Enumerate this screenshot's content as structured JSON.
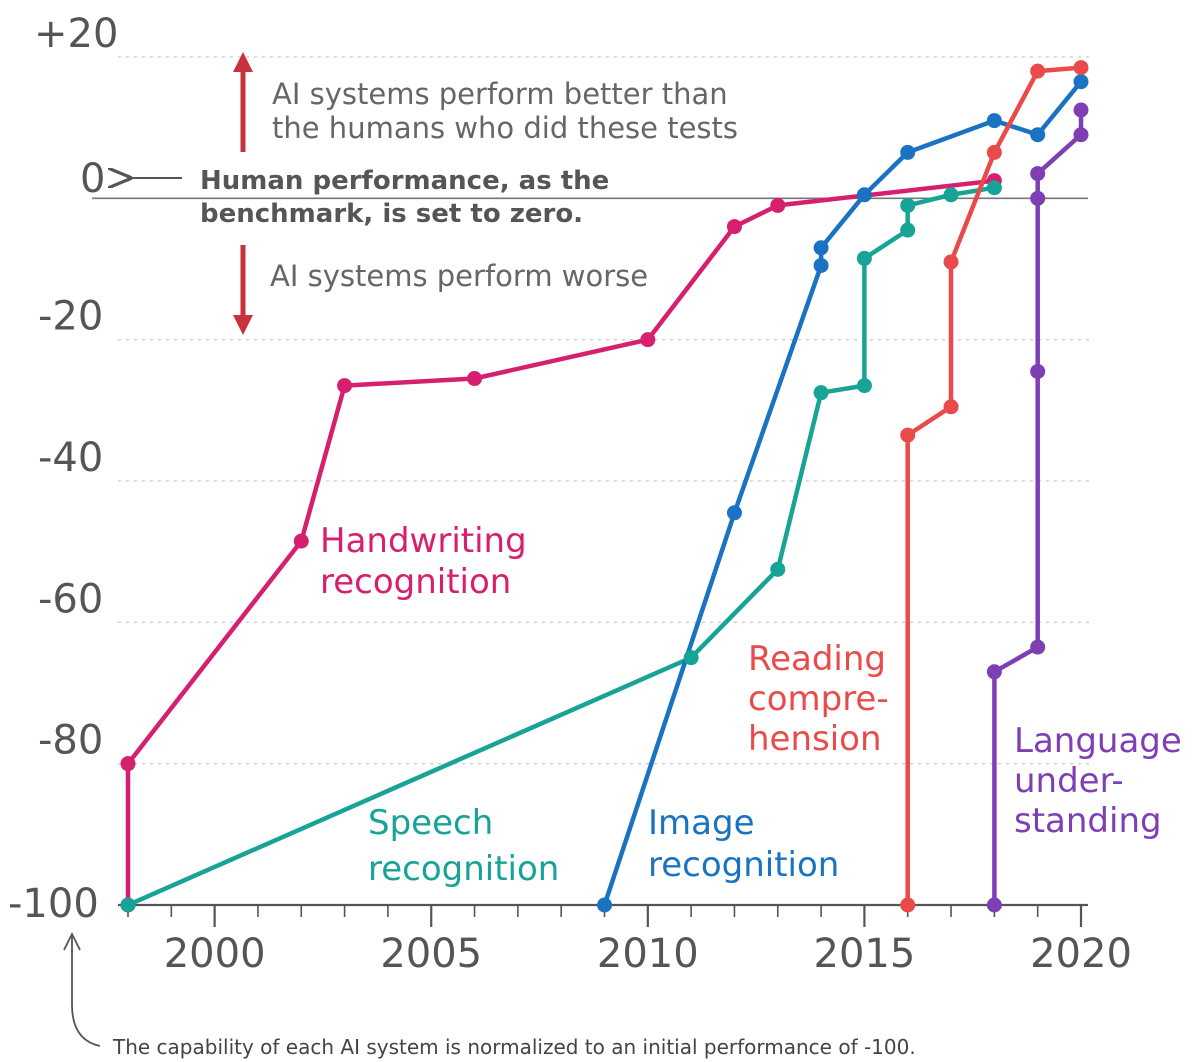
{
  "chart_data": {
    "type": "line",
    "xlim": [
      1997.5,
      2020.3
    ],
    "ylim": [
      -100,
      20
    ],
    "x_ticks": [
      2000,
      2005,
      2010,
      2015,
      2020
    ],
    "y_ticks": [
      {
        "value": 20,
        "label": "+20"
      },
      {
        "value": 0,
        "label": "0"
      },
      {
        "value": -20,
        "label": "-20"
      },
      {
        "value": -40,
        "label": "-40"
      },
      {
        "value": -60,
        "label": "-60"
      },
      {
        "value": -80,
        "label": "-80"
      },
      {
        "value": -100,
        "label": "-100"
      }
    ],
    "grid": "dotted horizontal",
    "series": [
      {
        "name": "Handwriting recognition",
        "color": "#d6206f",
        "label_lines": [
          "Handwriting",
          "recognition"
        ],
        "points": [
          [
            1998,
            -100
          ],
          [
            1998,
            -80
          ],
          [
            2002,
            -48.5
          ],
          [
            2003,
            -26.5
          ],
          [
            2006,
            -25.5
          ],
          [
            2010,
            -20
          ],
          [
            2012,
            -4
          ],
          [
            2013,
            -1
          ],
          [
            2018,
            2.5
          ]
        ]
      },
      {
        "name": "Speech recognition",
        "color": "#17a396",
        "label_lines": [
          "Speech",
          "recognition"
        ],
        "points": [
          [
            1998,
            -100
          ],
          [
            2011,
            -65
          ],
          [
            2013,
            -52.5
          ],
          [
            2014,
            -27.5
          ],
          [
            2015,
            -26.5
          ],
          [
            2015,
            -8.5
          ],
          [
            2016,
            -4.5
          ],
          [
            2016,
            -1
          ],
          [
            2017,
            0.5
          ],
          [
            2018,
            1.5
          ]
        ]
      },
      {
        "name": "Image recognition",
        "color": "#1a73c2",
        "label_lines": [
          "Image",
          "recognition"
        ],
        "points": [
          [
            2009,
            -100
          ],
          [
            2012,
            -44.5
          ],
          [
            2014,
            -9.5
          ],
          [
            2014,
            -7
          ],
          [
            2015,
            0.5
          ],
          [
            2016,
            6.5
          ],
          [
            2018,
            11
          ],
          [
            2019,
            9
          ],
          [
            2020,
            16.5
          ]
        ]
      },
      {
        "name": "Reading comprehension",
        "color": "#ea4a4a",
        "label_lines": [
          "Reading",
          "compre-",
          "hension"
        ],
        "points": [
          [
            2016,
            -100
          ],
          [
            2016,
            -33.5
          ],
          [
            2017,
            -29.5
          ],
          [
            2017,
            -9
          ],
          [
            2018,
            6.5
          ],
          [
            2019,
            18
          ],
          [
            2020,
            18.5
          ]
        ]
      },
      {
        "name": "Language understanding",
        "color": "#7e3fb5",
        "label_lines": [
          "Language",
          "under-",
          "standing"
        ],
        "points": [
          [
            2018,
            -100
          ],
          [
            2018,
            -67
          ],
          [
            2019,
            -63.5
          ],
          [
            2019,
            -24.5
          ],
          [
            2019,
            0
          ],
          [
            2019,
            3.5
          ],
          [
            2020,
            9
          ],
          [
            2020,
            12.5
          ]
        ]
      }
    ],
    "annotations": {
      "better_lines": [
        "AI systems perform better than",
        "the humans who did these tests"
      ],
      "benchmark_lines": [
        "Human performance, as the",
        "benchmark, is set to zero."
      ],
      "worse_text": "AI systems perform worse",
      "footnote": "The capability of each AI system is normalized to an initial performance of -100."
    }
  },
  "colors": {
    "arrow_red": "#c8323c",
    "grid": "#cccccc",
    "axis": "#555555",
    "baseline": "#777777"
  }
}
